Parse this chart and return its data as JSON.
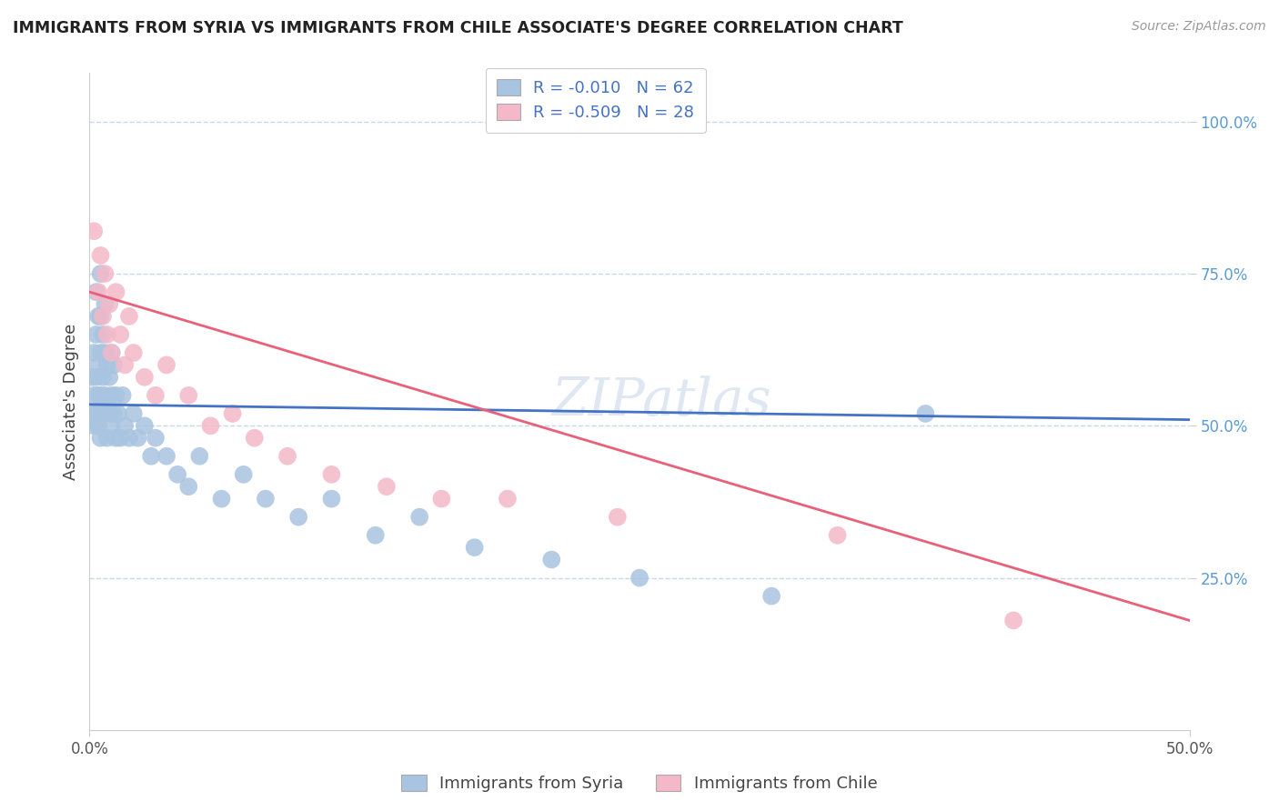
{
  "title": "IMMIGRANTS FROM SYRIA VS IMMIGRANTS FROM CHILE ASSOCIATE'S DEGREE CORRELATION CHART",
  "source": "Source: ZipAtlas.com",
  "ylabel": "Associate's Degree",
  "xlim": [
    0.0,
    0.5
  ],
  "ylim": [
    0.0,
    1.08
  ],
  "yticks": [
    0.25,
    0.5,
    0.75,
    1.0
  ],
  "ytick_labels": [
    "25.0%",
    "50.0%",
    "75.0%",
    "100.0%"
  ],
  "scatter_syria_color": "#a8c4e0",
  "scatter_chile_color": "#f4b8c8",
  "line_syria_color": "#4472c4",
  "line_chile_color": "#e8607a",
  "background_color": "#ffffff",
  "grid_color": "#c8d8ea",
  "watermark": "ZIPatlas",
  "syria_x": [
    0.001,
    0.001,
    0.002,
    0.002,
    0.002,
    0.003,
    0.003,
    0.003,
    0.003,
    0.004,
    0.004,
    0.004,
    0.004,
    0.005,
    0.005,
    0.005,
    0.005,
    0.005,
    0.006,
    0.006,
    0.006,
    0.007,
    0.007,
    0.007,
    0.008,
    0.008,
    0.008,
    0.009,
    0.009,
    0.01,
    0.01,
    0.01,
    0.011,
    0.011,
    0.012,
    0.012,
    0.013,
    0.014,
    0.015,
    0.016,
    0.018,
    0.02,
    0.022,
    0.025,
    0.028,
    0.03,
    0.035,
    0.04,
    0.045,
    0.05,
    0.06,
    0.07,
    0.08,
    0.095,
    0.11,
    0.13,
    0.15,
    0.175,
    0.21,
    0.25,
    0.31,
    0.38
  ],
  "syria_y": [
    0.52,
    0.58,
    0.62,
    0.55,
    0.5,
    0.72,
    0.65,
    0.58,
    0.52,
    0.68,
    0.6,
    0.55,
    0.5,
    0.75,
    0.68,
    0.62,
    0.55,
    0.48,
    0.65,
    0.58,
    0.52,
    0.7,
    0.62,
    0.55,
    0.6,
    0.54,
    0.48,
    0.58,
    0.52,
    0.62,
    0.55,
    0.5,
    0.6,
    0.52,
    0.55,
    0.48,
    0.52,
    0.48,
    0.55,
    0.5,
    0.48,
    0.52,
    0.48,
    0.5,
    0.45,
    0.48,
    0.45,
    0.42,
    0.4,
    0.45,
    0.38,
    0.42,
    0.38,
    0.35,
    0.38,
    0.32,
    0.35,
    0.3,
    0.28,
    0.25,
    0.22,
    0.52
  ],
  "chile_x": [
    0.002,
    0.004,
    0.005,
    0.006,
    0.007,
    0.008,
    0.009,
    0.01,
    0.012,
    0.014,
    0.016,
    0.018,
    0.02,
    0.025,
    0.03,
    0.035,
    0.045,
    0.055,
    0.065,
    0.075,
    0.09,
    0.11,
    0.135,
    0.16,
    0.19,
    0.24,
    0.34,
    0.42
  ],
  "chile_y": [
    0.82,
    0.72,
    0.78,
    0.68,
    0.75,
    0.65,
    0.7,
    0.62,
    0.72,
    0.65,
    0.6,
    0.68,
    0.62,
    0.58,
    0.55,
    0.6,
    0.55,
    0.5,
    0.52,
    0.48,
    0.45,
    0.42,
    0.4,
    0.38,
    0.38,
    0.35,
    0.32,
    0.18
  ],
  "syria_line_x": [
    0.0,
    0.5
  ],
  "syria_line_y": [
    0.535,
    0.51
  ],
  "chile_line_x": [
    0.0,
    0.5
  ],
  "chile_line_y": [
    0.72,
    0.18
  ]
}
